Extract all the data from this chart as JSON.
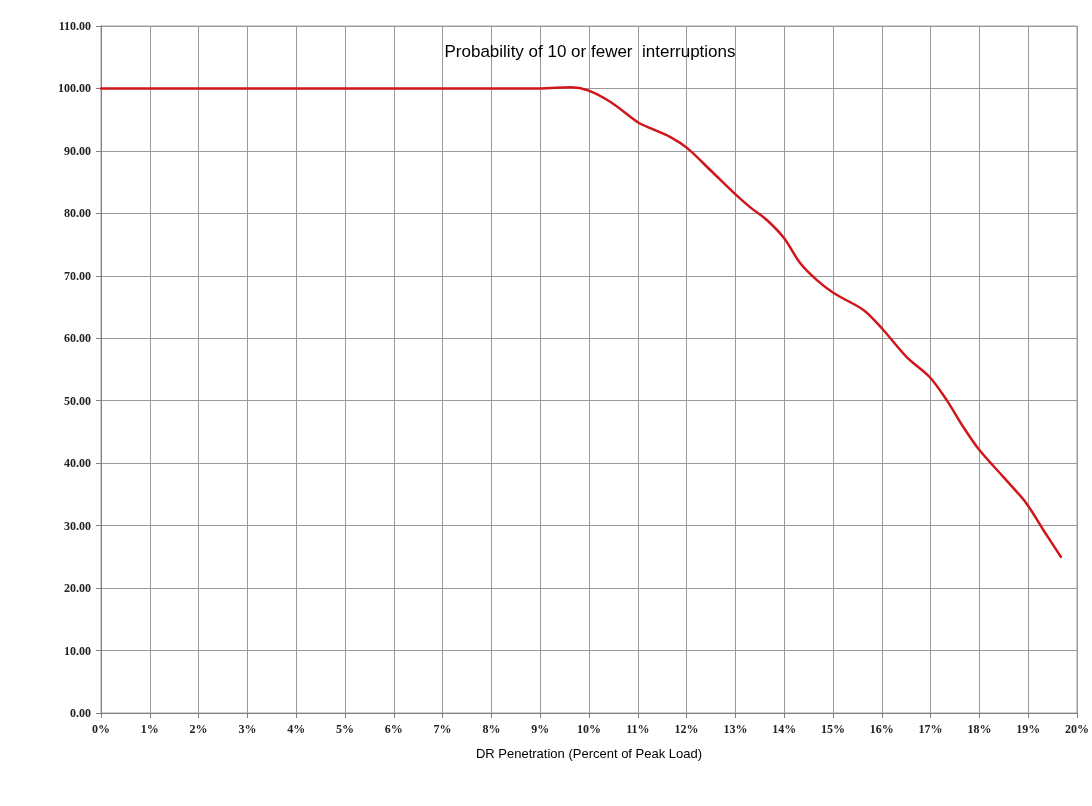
{
  "chart_data": {
    "type": "line",
    "title": "Probability of 10 or fewer  interruptions",
    "xlabel": "DR Penetration (Percent of Peak Load)",
    "x": [
      0,
      9,
      9.63,
      9.98,
      10.45,
      11,
      11.27,
      11.67,
      12.02,
      12.49,
      12.98,
      13.3,
      13.65,
      14,
      14.33,
      14.67,
      15.02,
      15.63,
      16,
      16.51,
      16.98,
      17.33,
      17.67,
      18,
      18.49,
      18.96,
      19.31,
      19.67
    ],
    "series": [
      {
        "color": "#d0161b",
        "values": [
          100,
          100,
          100.2,
          99.7,
          97.8,
          94.6,
          93.6,
          92.2,
          90.4,
          86.9,
          83.2,
          81,
          78.9,
          76,
          72,
          69.3,
          67.2,
          64.5,
          61.6,
          57,
          53.8,
          50.1,
          45.8,
          42.1,
          37.8,
          33.6,
          29.3,
          25
        ]
      }
    ],
    "xlim": [
      0,
      20
    ],
    "xticks": [
      {
        "value": 0,
        "label": "0%"
      },
      {
        "value": 1,
        "label": "1%"
      },
      {
        "value": 2,
        "label": "2%"
      },
      {
        "value": 3,
        "label": "3%"
      },
      {
        "value": 4,
        "label": "4%"
      },
      {
        "value": 5,
        "label": "5%"
      },
      {
        "value": 6,
        "label": "6%"
      },
      {
        "value": 7,
        "label": "7%"
      },
      {
        "value": 8,
        "label": "8%"
      },
      {
        "value": 9,
        "label": "9%"
      },
      {
        "value": 10,
        "label": "10%"
      },
      {
        "value": 11,
        "label": "11%"
      },
      {
        "value": 12,
        "label": "12%"
      },
      {
        "value": 13,
        "label": "13%"
      },
      {
        "value": 14,
        "label": "14%"
      },
      {
        "value": 15,
        "label": "15%"
      },
      {
        "value": 16,
        "label": "16%"
      },
      {
        "value": 17,
        "label": "17%"
      },
      {
        "value": 18,
        "label": "18%"
      },
      {
        "value": 19,
        "label": "19%"
      },
      {
        "value": 20,
        "label": "20%"
      }
    ],
    "ylim": [
      0,
      110
    ],
    "yticks": [
      {
        "value": 0,
        "label": "0.00"
      },
      {
        "value": 10,
        "label": "10.00"
      },
      {
        "value": 20,
        "label": "20.00"
      },
      {
        "value": 30,
        "label": "30.00"
      },
      {
        "value": 40,
        "label": "40.00"
      },
      {
        "value": 50,
        "label": "50.00"
      },
      {
        "value": 60,
        "label": "60.00"
      },
      {
        "value": 70,
        "label": "70.00"
      },
      {
        "value": 80,
        "label": "80.00"
      },
      {
        "value": 90,
        "label": "90.00"
      },
      {
        "value": 100,
        "label": "100.00"
      },
      {
        "value": 110,
        "label": "110.00"
      }
    ],
    "grid": true,
    "marker": "none",
    "line_style": "solid"
  }
}
